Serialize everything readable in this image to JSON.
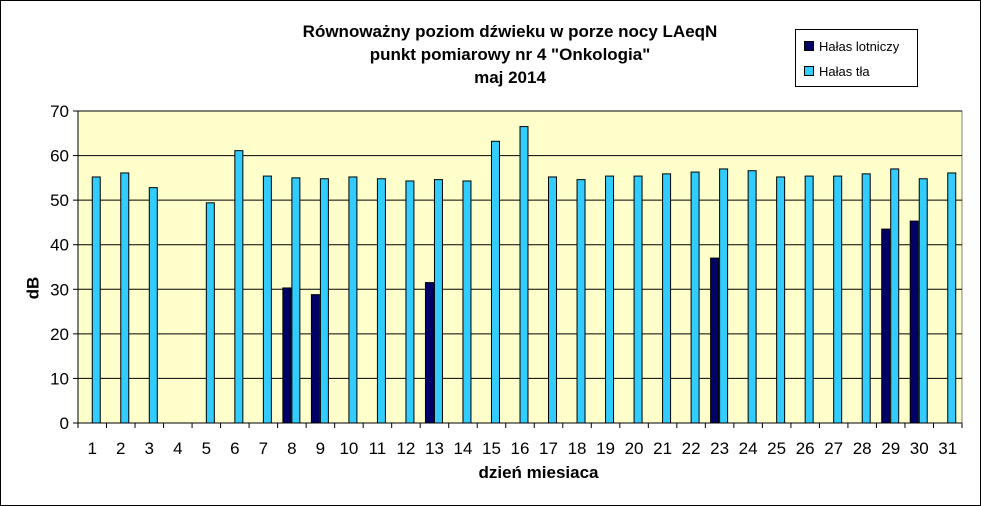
{
  "chart_data": {
    "type": "bar",
    "title_lines": [
      "Równoważny poziom dźwieku w porze nocy LAeqN",
      "punkt pomiarowy nr 4 \"Onkologia\"",
      "maj 2014"
    ],
    "xlabel": "dzień miesiaca",
    "ylabel": "dB",
    "ylim": [
      0,
      70
    ],
    "yticks": [
      "0",
      "10",
      "20",
      "30",
      "40",
      "50",
      "60",
      "70"
    ],
    "grid": true,
    "legend_position": "top-right",
    "categories": [
      "1",
      "2",
      "3",
      "4",
      "5",
      "6",
      "7",
      "8",
      "9",
      "10",
      "11",
      "12",
      "13",
      "14",
      "15",
      "16",
      "17",
      "18",
      "19",
      "20",
      "21",
      "22",
      "23",
      "24",
      "25",
      "26",
      "27",
      "28",
      "29",
      "30",
      "31"
    ],
    "series": [
      {
        "name": "Hałas lotniczy",
        "color": "#000066",
        "values": [
          null,
          null,
          null,
          null,
          null,
          null,
          null,
          30.3,
          28.8,
          null,
          null,
          null,
          31.5,
          null,
          null,
          null,
          null,
          null,
          null,
          null,
          null,
          null,
          37.0,
          null,
          null,
          null,
          null,
          null,
          43.5,
          45.3,
          null
        ]
      },
      {
        "name": "Hałas tła",
        "color": "#33CCFF",
        "values": [
          55.2,
          56.1,
          52.8,
          null,
          49.4,
          61.1,
          55.4,
          55.0,
          54.8,
          55.2,
          54.8,
          54.3,
          54.6,
          54.3,
          63.2,
          66.5,
          55.2,
          54.6,
          55.4,
          55.4,
          55.9,
          56.3,
          57.0,
          56.6,
          55.2,
          55.4,
          55.4,
          55.9,
          57.0,
          54.8,
          56.1
        ]
      }
    ]
  },
  "colors": {
    "plot_background": "#FFFFCC",
    "gridline": "#000000"
  }
}
